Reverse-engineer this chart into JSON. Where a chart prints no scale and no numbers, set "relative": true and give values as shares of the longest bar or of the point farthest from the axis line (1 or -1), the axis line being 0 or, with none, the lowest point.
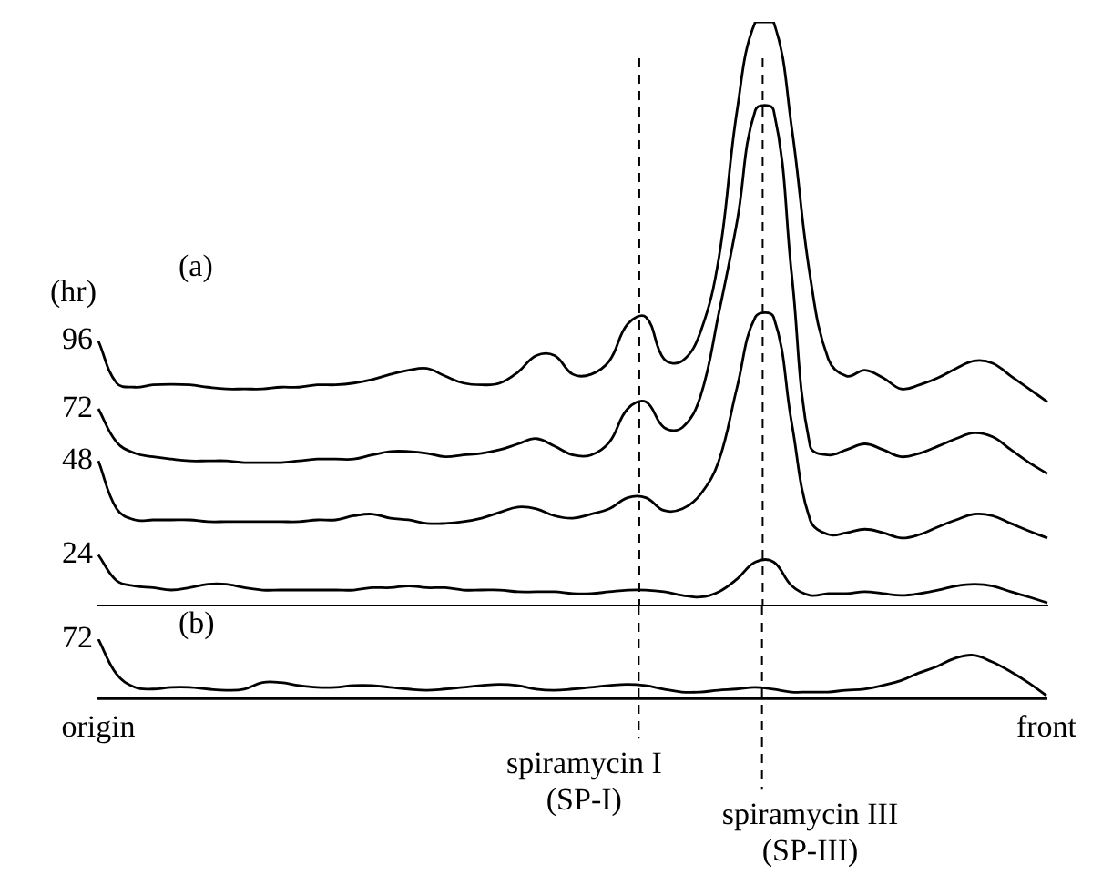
{
  "chart_data": [
    {
      "type": "line",
      "title": "(a)",
      "legend_title": "(hr)",
      "relative": true,
      "tick_labels": false,
      "categories": [
        null,
        null,
        null,
        null,
        null,
        null,
        null,
        null,
        null,
        null,
        null,
        null,
        null,
        null,
        null,
        null,
        null,
        null,
        null,
        null,
        null,
        null,
        null,
        null,
        null,
        null,
        null,
        null,
        null,
        null,
        null,
        null,
        null,
        null,
        null,
        null,
        null,
        null,
        null,
        null,
        null,
        null,
        null,
        null,
        null,
        null,
        null,
        null,
        null,
        null,
        null,
        null,
        null
      ],
      "series": [
        {
          "name": "96",
          "color": "#000000",
          "values": [
            0.454,
            0.382,
            0.375,
            0.379,
            0.38,
            0.379,
            0.375,
            0.372,
            0.372,
            0.372,
            0.375,
            0.375,
            0.379,
            0.379,
            0.382,
            0.388,
            0.397,
            0.404,
            0.407,
            0.394,
            0.382,
            0.379,
            0.382,
            0.401,
            0.429,
            0.429,
            0.397,
            0.397,
            0.42,
            0.483,
            0.495,
            0.423,
            0.42,
            0.47,
            0.596,
            0.849,
            1,
            1,
            0.817,
            0.565,
            0.423,
            0.394,
            0.404,
            0.391,
            0.372,
            0.379,
            0.391,
            0.407,
            0.42,
            0.416,
            0.394,
            0.372,
            0.35
          ]
        },
        {
          "name": "72",
          "color": "#000000",
          "values": [
            0.338,
            0.281,
            0.262,
            0.256,
            0.252,
            0.249,
            0.249,
            0.249,
            0.246,
            0.246,
            0.246,
            0.249,
            0.252,
            0.252,
            0.252,
            0.259,
            0.265,
            0.265,
            0.262,
            0.256,
            0.259,
            0.262,
            0.268,
            0.278,
            0.287,
            0.274,
            0.259,
            0.259,
            0.281,
            0.338,
            0.35,
            0.306,
            0.306,
            0.36,
            0.502,
            0.659,
            0.849,
            0.849,
            0.565,
            0.274,
            0.259,
            0.268,
            0.278,
            0.268,
            0.256,
            0.262,
            0.274,
            0.287,
            0.297,
            0.29,
            0.268,
            0.246,
            0.227
          ]
        },
        {
          "name": "48",
          "color": "#000000",
          "values": [
            0.249,
            0.167,
            0.148,
            0.148,
            0.148,
            0.148,
            0.145,
            0.145,
            0.145,
            0.145,
            0.145,
            0.145,
            0.148,
            0.148,
            0.155,
            0.158,
            0.151,
            0.148,
            0.142,
            0.142,
            0.145,
            0.151,
            0.161,
            0.17,
            0.167,
            0.155,
            0.151,
            0.158,
            0.167,
            0.186,
            0.186,
            0.164,
            0.167,
            0.192,
            0.249,
            0.375,
            0.495,
            0.495,
            0.312,
            0.148,
            0.123,
            0.126,
            0.132,
            0.126,
            0.117,
            0.123,
            0.136,
            0.148,
            0.158,
            0.155,
            0.142,
            0.129,
            0.117
          ]
        },
        {
          "name": "24",
          "color": "#000000",
          "values": [
            0.088,
            0.044,
            0.035,
            0.032,
            0.028,
            0.032,
            0.038,
            0.038,
            0.032,
            0.028,
            0.028,
            0.028,
            0.028,
            0.028,
            0.028,
            0.032,
            0.032,
            0.035,
            0.032,
            0.032,
            0.028,
            0.028,
            0.028,
            0.025,
            0.025,
            0.025,
            0.022,
            0.022,
            0.025,
            0.028,
            0.028,
            0.025,
            0.019,
            0.016,
            0.025,
            0.047,
            0.076,
            0.076,
            0.035,
            0.019,
            0.022,
            0.022,
            0.025,
            0.022,
            0.019,
            0.022,
            0.028,
            0.035,
            0.038,
            0.035,
            0.025,
            0.016,
            0.006
          ]
        }
      ],
      "legend": false
    },
    {
      "type": "line",
      "title": "(b)",
      "relative": true,
      "tick_labels": "x",
      "categories": [
        "origin",
        null,
        null,
        null,
        null,
        null,
        null,
        null,
        null,
        null,
        null,
        null,
        null,
        null,
        null,
        null,
        null,
        null,
        null,
        null,
        null,
        null,
        null,
        null,
        null,
        null,
        null,
        null,
        null,
        null,
        null,
        null,
        null,
        null,
        null,
        null,
        null,
        null,
        null,
        null,
        null,
        null,
        null,
        null,
        null,
        null,
        null,
        null,
        null,
        null,
        null,
        null,
        "front"
      ],
      "series": [
        {
          "name": "72",
          "color": "#000000",
          "values": [
            1,
            0.41,
            0.19,
            0.16,
            0.19,
            0.19,
            0.16,
            0.14,
            0.16,
            0.27,
            0.27,
            0.22,
            0.19,
            0.19,
            0.22,
            0.22,
            0.19,
            0.16,
            0.14,
            0.16,
            0.19,
            0.22,
            0.24,
            0.22,
            0.16,
            0.14,
            0.16,
            0.19,
            0.22,
            0.24,
            0.22,
            0.16,
            0.11,
            0.11,
            0.14,
            0.16,
            0.19,
            0.16,
            0.11,
            0.11,
            0.11,
            0.14,
            0.16,
            0.22,
            0.3,
            0.43,
            0.54,
            0.68,
            0.73,
            0.62,
            0.46,
            0.27,
            0.05
          ]
        }
      ],
      "annotations": [
        "spiramycin I\n(SP-I)",
        "spiramycin III\n(SP-III)"
      ]
    }
  ]
}
